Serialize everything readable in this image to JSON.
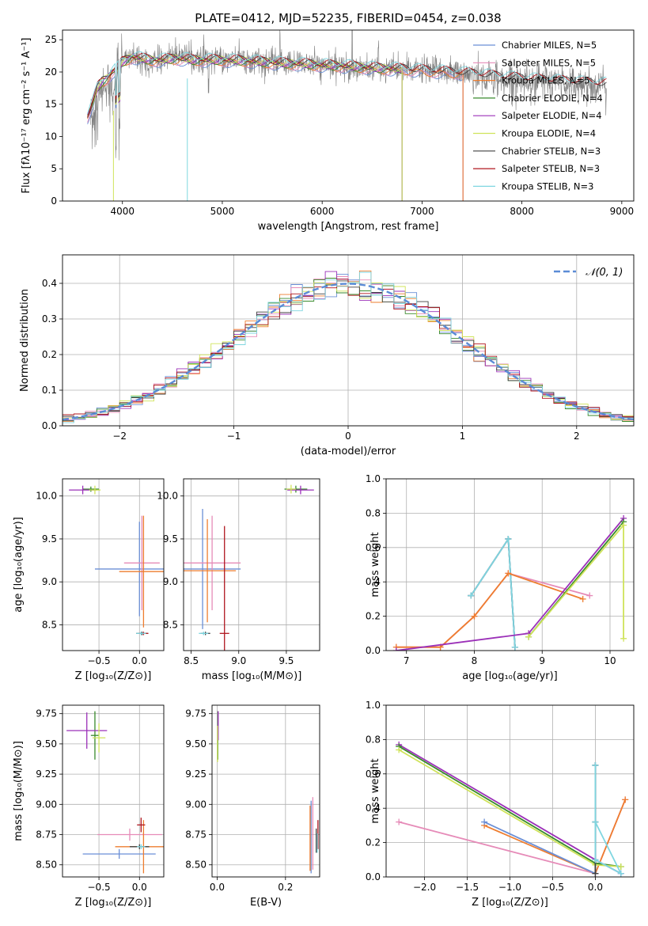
{
  "chart_data": [
    {
      "id": "spectrum",
      "type": "line",
      "title": "PLATE=0412, MJD=52235, FIBERID=0454, z=0.038",
      "xlabel": "wavelength [Angstrom, rest frame]",
      "ylabel": "Flux [fλ10⁻¹⁷ erg cm⁻² s⁻¹ A⁻¹]",
      "xlim": [
        3400,
        9120
      ],
      "ylim": [
        0,
        26.5
      ],
      "xticks": [
        4000,
        5000,
        6000,
        7000,
        8000,
        9000
      ],
      "yticks": [
        0,
        5,
        10,
        15,
        20,
        25
      ],
      "grid": false,
      "legend_position": "upper right",
      "data_series": {
        "name": "data",
        "color": "#808080",
        "x": [
          3680,
          3720,
          3760,
          3800,
          3850,
          3900,
          3950,
          4000,
          4050,
          4100,
          4200,
          4300,
          4400,
          4500,
          4600,
          4700,
          4800,
          4900,
          5000,
          5200,
          5400,
          5600,
          5800,
          6000,
          6200,
          6400,
          6600,
          6800,
          7000,
          7200,
          7400,
          7600,
          7800,
          8000,
          8200,
          8400,
          8600,
          8800
        ],
        "y": [
          12.5,
          14.5,
          16.5,
          17.5,
          19,
          16,
          21,
          22,
          22.5,
          22,
          21.5,
          21.5,
          22,
          22.5,
          22.5,
          22,
          22,
          22,
          22,
          22,
          21.5,
          21.3,
          21.5,
          20.8,
          20.8,
          20.6,
          20.3,
          20.5,
          20.3,
          20.2,
          19.8,
          19.3,
          18.8,
          18.8,
          18.6,
          18.4,
          18.1,
          17.8
        ]
      },
      "series": [
        {
          "name": "Chabrier MILES, N_SSP=5",
          "color": "#6b8fd6",
          "xmax": 7410
        },
        {
          "name": "Salpeter MILES, N_SSP=5",
          "color": "#e68bb8",
          "xmax": 7410
        },
        {
          "name": "Kroupa MILES, N_SSP=5",
          "color": "#ee7d2f",
          "xmax": 7410
        },
        {
          "name": "Chabrier ELODIE, N_SSP=4",
          "color": "#3a8a2c",
          "xmax": 6800
        },
        {
          "name": "Salpeter ELODIE, N_SSP=4",
          "color": "#9b30b8",
          "xmax": 6800
        },
        {
          "name": "Kroupa ELODIE, N_SSP=4",
          "color": "#cfe35a",
          "xmax": 6800
        },
        {
          "name": "Chabrier STELIB, N_SSP=3",
          "color": "#404040",
          "xmax": 8850
        },
        {
          "name": "Salpeter STELIB, N_SSP=3",
          "color": "#b0171f",
          "xmax": 8850
        },
        {
          "name": "Kroupa STELIB, N_SSP=3",
          "color": "#7fd6e0",
          "xmax": 8850
        }
      ],
      "model_x": [
        3650,
        3700,
        3750,
        3800,
        3850,
        3900,
        3950,
        4000,
        4100,
        4200,
        4300,
        4400,
        4500,
        4600,
        4700,
        4800,
        4900,
        5000,
        5200,
        5400,
        5600,
        5800,
        6000,
        6200,
        6400,
        6600,
        6800,
        7000,
        7200,
        7400,
        7600,
        7800,
        8000,
        8200,
        8400,
        8600,
        8800
      ],
      "model_y": [
        13,
        15,
        17.5,
        18.5,
        19,
        20,
        20.5,
        21.5,
        22.3,
        22,
        21.8,
        21.8,
        22,
        22,
        21.8,
        21.8,
        21.8,
        21.8,
        21.7,
        21.5,
        21.3,
        21.2,
        21,
        20.9,
        20.7,
        20.5,
        20.4,
        20.2,
        20,
        19.8,
        19.5,
        19.2,
        18.9,
        18.7,
        18.5,
        18.3,
        18.1
      ]
    },
    {
      "id": "residuals",
      "type": "histogram",
      "xlabel": "(data-model)/error",
      "ylabel": "Normed distribution",
      "xlim": [
        -2.5,
        2.5
      ],
      "ylim": [
        0,
        0.48
      ],
      "xticks": [
        -2,
        -1,
        0,
        1,
        2
      ],
      "yticks": [
        0.0,
        0.1,
        0.2,
        0.3,
        0.4
      ],
      "grid": true,
      "legend": "𝒩(0, 1)",
      "legend_position": "upper right",
      "gaussian_color": "#5b8bd6",
      "bin_width": 0.1
    },
    {
      "id": "age_vs_Z",
      "type": "errorbar",
      "xlabel": "Z [log₁₀(Z/Z⊙)]",
      "ylabel": "age  [log₁₀(age/yr)]",
      "xlim": [
        -0.95,
        0.3
      ],
      "ylim": [
        8.2,
        10.2
      ],
      "xticks": [
        -0.5,
        0.0
      ],
      "yticks": [
        8.5,
        9.0,
        9.5,
        10.0
      ],
      "points": [
        {
          "c": "#6b8fd6",
          "x": 0.0,
          "y": 9.15,
          "xe": 0.55,
          "ye": 0.55
        },
        {
          "c": "#e68bb8",
          "x": 0.03,
          "y": 9.22,
          "xe": 0.22,
          "ye": 0.55
        },
        {
          "c": "#ee7d2f",
          "x": 0.05,
          "y": 9.12,
          "xe": 0.3,
          "ye": 0.65
        },
        {
          "c": "#3a8a2c",
          "x": -0.6,
          "y": 10.08,
          "xe": 0.1,
          "ye": 0.03
        },
        {
          "c": "#9b30b8",
          "x": -0.7,
          "y": 10.07,
          "xe": 0.17,
          "ye": 0.05
        },
        {
          "c": "#cfe35a",
          "x": -0.55,
          "y": 10.07,
          "xe": 0.07,
          "ye": 0.05
        },
        {
          "c": "#404040",
          "x": 0.03,
          "y": 8.4,
          "xe": 0.07,
          "ye": 0.02
        },
        {
          "c": "#b0171f",
          "x": 0.05,
          "y": 8.4,
          "xe": 0.06,
          "ye": 0.02
        },
        {
          "c": "#7fd6e0",
          "x": 0.02,
          "y": 8.4,
          "xe": 0.06,
          "ye": 0.02
        }
      ]
    },
    {
      "id": "age_vs_mass",
      "type": "errorbar",
      "xlabel": "mass [log₁₀(M/M⊙)]",
      "ylabel": "",
      "xlim": [
        8.42,
        9.85
      ],
      "ylim": [
        8.2,
        10.2
      ],
      "xticks": [
        8.5,
        9.0,
        9.5
      ],
      "yticks": [
        8.5,
        9.0,
        9.5,
        10.0
      ],
      "points": [
        {
          "c": "#6b8fd6",
          "x": 8.62,
          "y": 9.15,
          "xe": 0.4,
          "ye": 0.7
        },
        {
          "c": "#e68bb8",
          "x": 8.72,
          "y": 9.22,
          "xe": 0.3,
          "ye": 0.55
        },
        {
          "c": "#ee7d2f",
          "x": 8.67,
          "y": 9.13,
          "xe": 0.3,
          "ye": 0.6
        },
        {
          "c": "#3a8a2c",
          "x": 9.6,
          "y": 10.08,
          "xe": 0.12,
          "ye": 0.04
        },
        {
          "c": "#9b30b8",
          "x": 9.65,
          "y": 10.07,
          "xe": 0.14,
          "ye": 0.05
        },
        {
          "c": "#cfe35a",
          "x": 9.55,
          "y": 10.08,
          "xe": 0.05,
          "ye": 0.05
        },
        {
          "c": "#404040",
          "x": 8.65,
          "y": 8.4,
          "xe": 0.05,
          "ye": 0.02
        },
        {
          "c": "#b0171f",
          "x": 8.85,
          "y": 8.4,
          "xe": 0.05,
          "ye": 1.25
        },
        {
          "c": "#7fd6e0",
          "x": 8.63,
          "y": 8.4,
          "xe": 0.05,
          "ye": 0.02
        }
      ]
    },
    {
      "id": "massweight_vs_age",
      "type": "line",
      "xlabel": "age  [log₁₀(age/yr)]",
      "ylabel": "mass weight",
      "xlim": [
        6.7,
        10.35
      ],
      "ylim": [
        0,
        1.0
      ],
      "xticks": [
        7,
        8,
        9,
        10
      ],
      "yticks": [
        0.0,
        0.2,
        0.4,
        0.6,
        0.8,
        1.0
      ],
      "grid": true,
      "lines": [
        {
          "c": "#6b8fd6",
          "x": [
            7.95,
            8.5,
            8.6
          ],
          "y": [
            0.32,
            0.65,
            0.02
          ]
        },
        {
          "c": "#404040",
          "x": [
            7.95,
            8.5,
            8.6
          ],
          "y": [
            0.32,
            0.65,
            0.02
          ]
        },
        {
          "c": "#7fd6e0",
          "x": [
            7.95,
            8.5,
            8.6
          ],
          "y": [
            0.32,
            0.65,
            0.02
          ]
        },
        {
          "c": "#e68bb8",
          "x": [
            6.85,
            7.5,
            8.0,
            8.5,
            9.7
          ],
          "y": [
            0.02,
            0.02,
            0.2,
            0.45,
            0.32
          ]
        },
        {
          "c": "#ee7d2f",
          "x": [
            6.85,
            7.5,
            8.0,
            8.5,
            9.6
          ],
          "y": [
            0.02,
            0.02,
            0.2,
            0.45,
            0.3
          ]
        },
        {
          "c": "#9b30b8",
          "x": [
            6.85,
            8.8,
            10.2
          ],
          "y": [
            0.0,
            0.1,
            0.77
          ]
        },
        {
          "c": "#3a8a2c",
          "x": [
            8.8,
            10.2
          ],
          "y": [
            0.08,
            0.75
          ]
        },
        {
          "c": "#cfe35a",
          "x": [
            8.8,
            10.2,
            10.2
          ],
          "y": [
            0.08,
            0.73,
            0.07
          ]
        }
      ]
    },
    {
      "id": "mass_vs_Z",
      "type": "errorbar",
      "xlabel": "Z [log₁₀(Z/Z⊙)]",
      "ylabel": "mass [log₁₀(M/M⊙)]",
      "xlim": [
        -0.95,
        0.3
      ],
      "ylim": [
        8.4,
        9.82
      ],
      "xticks": [
        -0.5,
        0.0
      ],
      "yticks": [
        8.5,
        8.75,
        9.0,
        9.25,
        9.5,
        9.75
      ],
      "points": [
        {
          "c": "#6b8fd6",
          "x": -0.25,
          "y": 8.59,
          "xe": 0.45,
          "ye": 0.04
        },
        {
          "c": "#e68bb8",
          "x": -0.12,
          "y": 8.75,
          "xe": 0.4,
          "ye": 0.05
        },
        {
          "c": "#ee7d2f",
          "x": 0.05,
          "y": 8.65,
          "xe": 0.35,
          "ye": 0.22
        },
        {
          "c": "#3a8a2c",
          "x": -0.55,
          "y": 9.57,
          "xe": 0.05,
          "ye": 0.2
        },
        {
          "c": "#9b30b8",
          "x": -0.65,
          "y": 9.61,
          "xe": 0.25,
          "ye": 0.15
        },
        {
          "c": "#cfe35a",
          "x": -0.5,
          "y": 9.55,
          "xe": 0.08,
          "ye": 0.12
        },
        {
          "c": "#404040",
          "x": 0.0,
          "y": 8.65,
          "xe": 0.12,
          "ye": 0.02
        },
        {
          "c": "#b0171f",
          "x": 0.02,
          "y": 8.83,
          "xe": 0.05,
          "ye": 0.06
        },
        {
          "c": "#7fd6e0",
          "x": 0.02,
          "y": 8.65,
          "xe": 0.05,
          "ye": 0.02
        }
      ]
    },
    {
      "id": "mass_vs_EBV",
      "type": "errorbar",
      "xlabel": "E(B-V)",
      "ylabel": "",
      "xlim": [
        -0.015,
        0.3
      ],
      "ylim": [
        8.4,
        9.82
      ],
      "xticks": [
        0.0,
        0.2
      ],
      "yticks": [
        8.5,
        8.75,
        9.0,
        9.25,
        9.5,
        9.75
      ],
      "points": [
        {
          "c": "#6b8fd6",
          "x": 0.275,
          "y": 8.73,
          "xe": 0.0,
          "ye": 0.3
        },
        {
          "c": "#e68bb8",
          "x": 0.28,
          "y": 8.76,
          "xe": 0.0,
          "ye": 0.3
        },
        {
          "c": "#ee7d2f",
          "x": 0.272,
          "y": 8.72,
          "xe": 0.0,
          "ye": 0.27
        },
        {
          "c": "#3a8a2c",
          "x": 0.002,
          "y": 9.57,
          "xe": 0.0,
          "ye": 0.2
        },
        {
          "c": "#9b30b8",
          "x": 0.003,
          "y": 9.65,
          "xe": 0.0,
          "ye": 0.12
        },
        {
          "c": "#cfe35a",
          "x": 0.001,
          "y": 9.5,
          "xe": 0.0,
          "ye": 0.15
        },
        {
          "c": "#404040",
          "x": 0.29,
          "y": 8.7,
          "xe": 0.0,
          "ye": 0.1
        },
        {
          "c": "#b0171f",
          "x": 0.295,
          "y": 8.75,
          "xe": 0.0,
          "ye": 0.12
        },
        {
          "c": "#7fd6e0",
          "x": 0.293,
          "y": 8.68,
          "xe": 0.0,
          "ye": 0.08
        }
      ]
    },
    {
      "id": "massweight_vs_Z",
      "type": "line",
      "xlabel": "Z [log₁₀(Z/Z⊙)]",
      "ylabel": "mass weight",
      "xlim": [
        -2.45,
        0.45
      ],
      "ylim": [
        0,
        1.0
      ],
      "xticks": [
        -2.0,
        -1.5,
        -1.0,
        -0.5,
        0.0
      ],
      "yticks": [
        0.0,
        0.2,
        0.4,
        0.6,
        0.8,
        1.0
      ],
      "grid": true,
      "lines": [
        {
          "c": "#e68bb8",
          "x": [
            -2.3,
            0.0,
            0.35
          ],
          "y": [
            0.32,
            0.02,
            0.45
          ]
        },
        {
          "c": "#ee7d2f",
          "x": [
            -1.3,
            0.0,
            0.35
          ],
          "y": [
            0.3,
            0.02,
            0.45
          ]
        },
        {
          "c": "#6b8fd6",
          "x": [
            -1.3,
            0.0,
            0.0,
            0.0
          ],
          "y": [
            0.32,
            0.02,
            0.65,
            0.32
          ]
        },
        {
          "c": "#9b30b8",
          "x": [
            -2.3,
            0.0,
            0.3
          ],
          "y": [
            0.77,
            0.1,
            0.02
          ]
        },
        {
          "c": "#3a8a2c",
          "x": [
            -2.3,
            0.0,
            0.3
          ],
          "y": [
            0.76,
            0.08,
            0.06
          ]
        },
        {
          "c": "#cfe35a",
          "x": [
            -2.3,
            0.0,
            0.3
          ],
          "y": [
            0.74,
            0.07,
            0.06
          ]
        },
        {
          "c": "#404040",
          "x": [
            0.0,
            0.0,
            0.0
          ],
          "y": [
            0.65,
            0.32,
            0.02
          ]
        },
        {
          "c": "#7fd6e0",
          "x": [
            0.0,
            0.0,
            0.3,
            0.0
          ],
          "y": [
            0.65,
            0.1,
            0.02,
            0.32
          ]
        }
      ]
    }
  ]
}
